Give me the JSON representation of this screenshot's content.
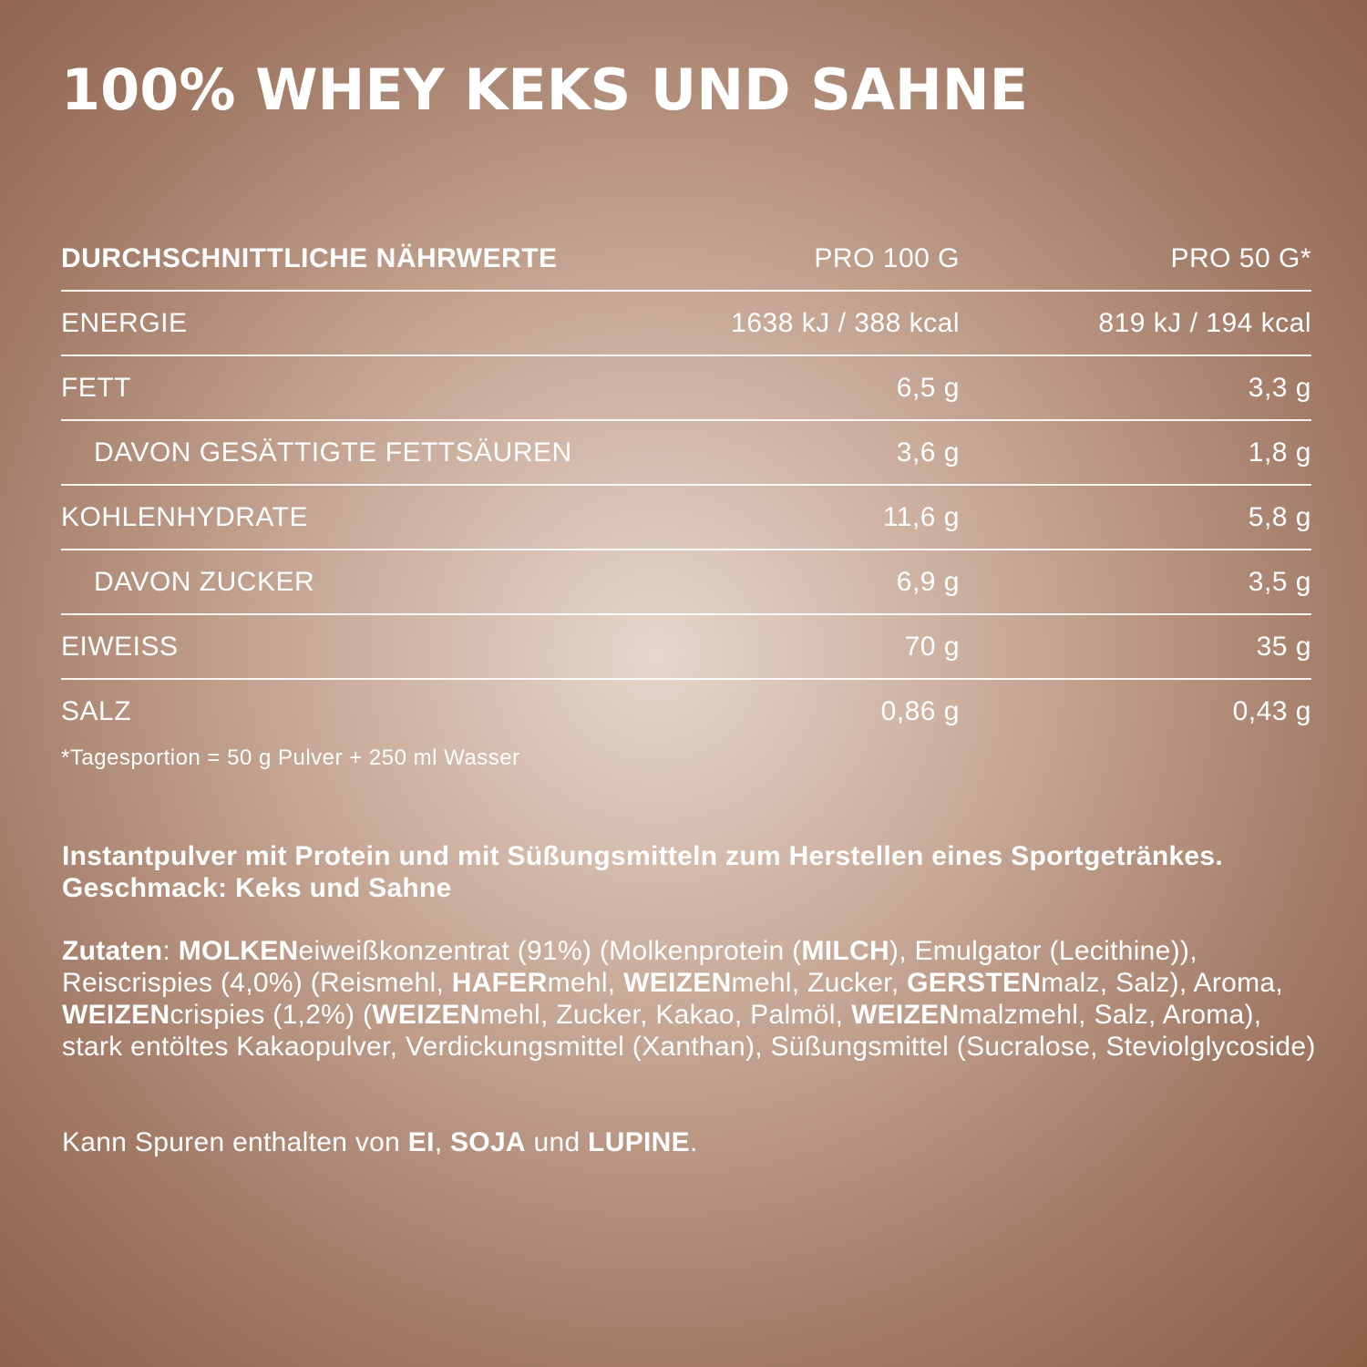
{
  "title": "100% WHEY KEKS UND SAHNE",
  "colors": {
    "background_center": "#e6d6cc",
    "background_edge": "#8a5c46",
    "text": "#ffffff"
  },
  "table": {
    "header": [
      "DURCHSCHNITTLICHE NÄHRWERTE",
      "PRO 100 G",
      "PRO 50 G*"
    ],
    "rows": [
      {
        "label": "ENERGIE",
        "per100": "1638 kJ / 388 kcal",
        "per50": "819 kJ / 194 kcal",
        "sub": false
      },
      {
        "label": "FETT",
        "per100": "6,5 g",
        "per50": "3,3 g",
        "sub": false
      },
      {
        "label": "DAVON GESÄTTIGTE  FETTSÄUREN",
        "per100": "3,6 g",
        "per50": "1,8 g",
        "sub": true
      },
      {
        "label": "KOHLENHYDRATE",
        "per100": "11,6 g",
        "per50": "5,8 g",
        "sub": false
      },
      {
        "label": "DAVON ZUCKER",
        "per100": "6,9 g",
        "per50": "3,5 g",
        "sub": true
      },
      {
        "label": "EIWEISS",
        "per100": "70 g",
        "per50": "35 g",
        "sub": false
      },
      {
        "label": "SALZ",
        "per100": "0,86 g",
        "per50": "0,43 g",
        "sub": false
      }
    ]
  },
  "footnote": "*Tagesportion = 50 g Pulver + 250 ml Wasser",
  "description": "Instantpulver mit Protein und mit Süßungsmitteln zum Herstellen eines Sportgetränkes. Geschmack: Keks und Sahne",
  "ingredients": [
    {
      "t": "Zutaten",
      "b": true
    },
    {
      "t": ": ",
      "b": false
    },
    {
      "t": "MOLKEN",
      "b": true
    },
    {
      "t": "eiweißkonzentrat (91%) (Molkenprotein (",
      "b": false
    },
    {
      "t": "MILCH",
      "b": true
    },
    {
      "t": "), Emulgator (Lecithine)), Reiscrispies (4,0%) (Reismehl, ",
      "b": false
    },
    {
      "t": "HAFER",
      "b": true
    },
    {
      "t": "mehl, ",
      "b": false
    },
    {
      "t": "WEIZEN",
      "b": true
    },
    {
      "t": "mehl, Zucker, ",
      "b": false
    },
    {
      "t": "GERSTEN",
      "b": true
    },
    {
      "t": "malz, Salz), Aroma, ",
      "b": false
    },
    {
      "t": "WEIZEN",
      "b": true
    },
    {
      "t": "crispies (1,2%) (",
      "b": false
    },
    {
      "t": "WEIZEN",
      "b": true
    },
    {
      "t": "mehl, Zucker, Kakao, Palmöl, ",
      "b": false
    },
    {
      "t": "WEIZEN",
      "b": true
    },
    {
      "t": "malzmehl, Salz, Aroma), stark entöltes Kakaopulver, Verdickungsmittel (Xanthan), Süßungsmittel (Sucralose, Steviolglycoside)",
      "b": false
    }
  ],
  "traces": [
    {
      "t": "Kann Spuren enthalten von ",
      "b": false
    },
    {
      "t": "EI",
      "b": true
    },
    {
      "t": ", ",
      "b": false
    },
    {
      "t": "SOJA",
      "b": true
    },
    {
      "t": " und ",
      "b": false
    },
    {
      "t": "LUPINE",
      "b": true
    },
    {
      "t": ".",
      "b": false
    }
  ]
}
